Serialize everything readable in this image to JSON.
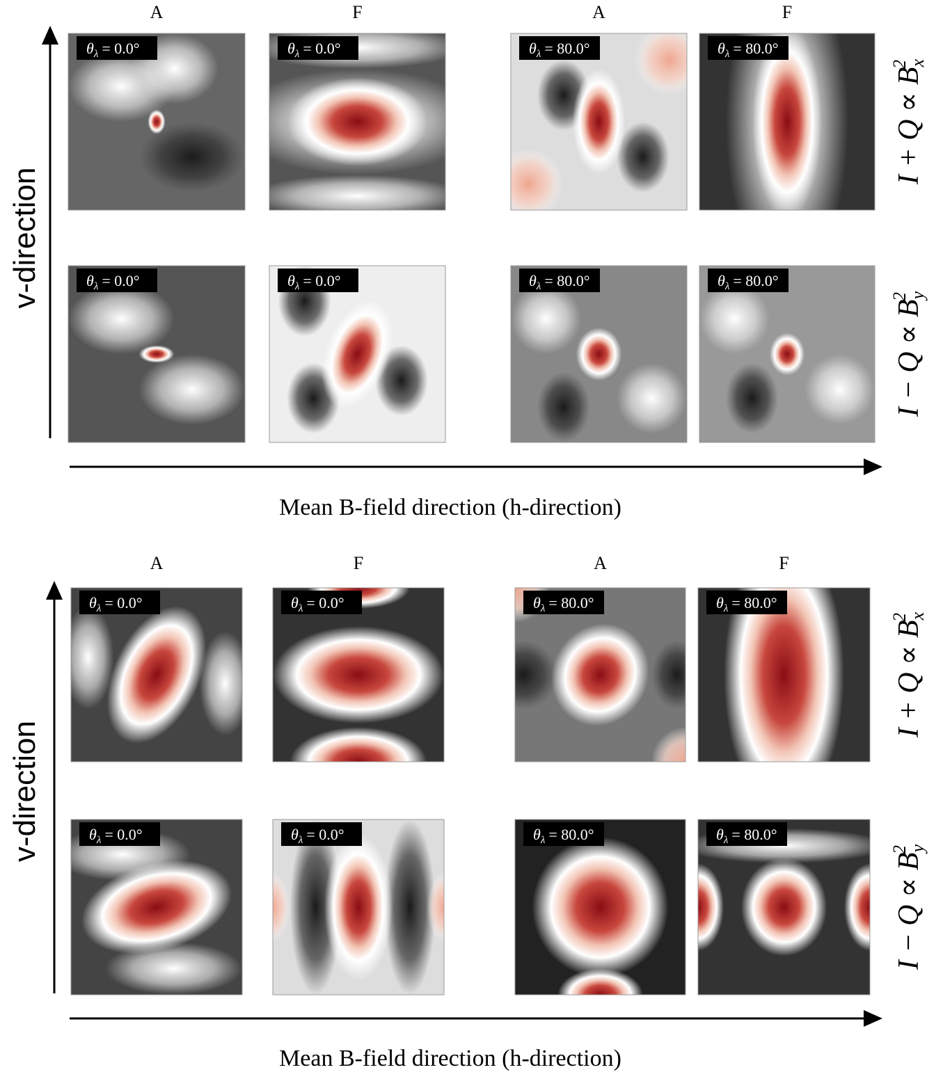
{
  "blocks": [
    {
      "column_headers": [
        "A",
        "F",
        "A",
        "F"
      ],
      "row_labels": [
        {
          "text": "I + Q ∝ B",
          "subscript": "x",
          "superscript": "2"
        },
        {
          "text": "I − Q ∝ B",
          "subscript": "y",
          "superscript": "2"
        }
      ],
      "y_axis_label": "v-direction",
      "x_axis_label": "Mean B-field direction (h-direction)",
      "panels": [
        [
          {
            "symbol": "θ",
            "subscript": "λ",
            "value": "= 0.0°"
          },
          {
            "symbol": "θ",
            "subscript": "λ",
            "value": "= 0.0°"
          },
          {
            "symbol": "θ",
            "subscript": "λ",
            "value": "= 80.0°"
          },
          {
            "symbol": "θ",
            "subscript": "λ",
            "value": "= 80.0°"
          }
        ],
        [
          {
            "symbol": "θ",
            "subscript": "λ",
            "value": "= 0.0°"
          },
          {
            "symbol": "θ",
            "subscript": "λ",
            "value": "= 0.0°"
          },
          {
            "symbol": "θ",
            "subscript": "λ",
            "value": "= 80.0°"
          },
          {
            "symbol": "θ",
            "subscript": "λ",
            "value": "= 80.0°"
          }
        ]
      ]
    },
    {
      "column_headers": [
        "A",
        "F",
        "A",
        "F"
      ],
      "row_labels": [
        {
          "text": "I + Q ∝ B",
          "subscript": "x",
          "superscript": "2"
        },
        {
          "text": "I − Q ∝ B",
          "subscript": "y",
          "superscript": "2"
        }
      ],
      "y_axis_label": "v-direction",
      "x_axis_label": "Mean B-field direction  (h-direction)",
      "panels": [
        [
          {
            "symbol": "θ",
            "subscript": "λ",
            "value": "= 0.0°"
          },
          {
            "symbol": "θ",
            "subscript": "λ",
            "value": "= 0.0°"
          },
          {
            "symbol": "θ",
            "subscript": "λ",
            "value": "= 80.0°"
          },
          {
            "symbol": "θ",
            "subscript": "λ",
            "value": "= 80.0°"
          }
        ],
        [
          {
            "symbol": "θ",
            "subscript": "λ",
            "value": "= 0.0°"
          },
          {
            "symbol": "θ",
            "subscript": "λ",
            "value": "= 0.0°"
          },
          {
            "symbol": "θ",
            "subscript": "λ",
            "value": "= 80.0°"
          },
          {
            "symbol": "θ",
            "subscript": "λ",
            "value": "= 80.0°"
          }
        ]
      ]
    }
  ]
}
